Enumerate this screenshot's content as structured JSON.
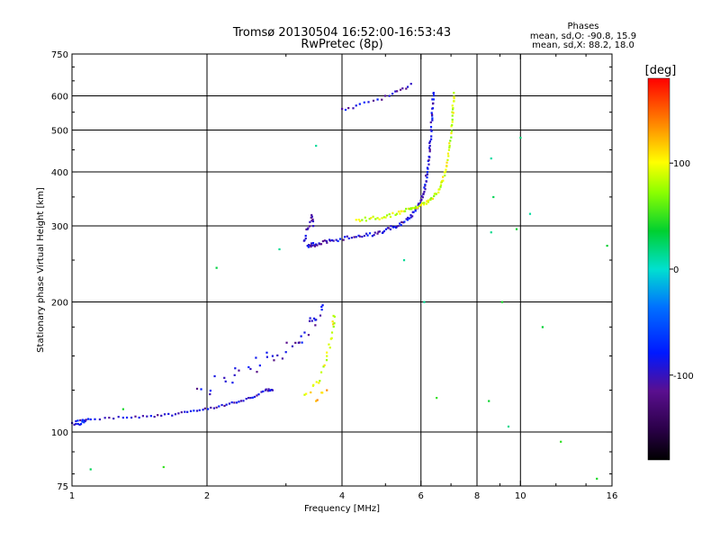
{
  "chart_data": {
    "type": "scatter",
    "title": "Tromsø 20130504 16:52:00-16:53:43",
    "subtitle": "RwPretec (8p)",
    "xlabel": "Frequency [MHz]",
    "ylabel": "Stationary phase Virtual Height [km]",
    "x_scale": "log",
    "y_scale": "log",
    "xlim": [
      1,
      16
    ],
    "ylim": [
      75,
      750
    ],
    "x_ticks": [
      {
        "value": 1,
        "label": "1"
      },
      {
        "value": 2,
        "label": "2"
      },
      {
        "value": 4,
        "label": "4"
      },
      {
        "value": 6,
        "label": "6"
      },
      {
        "value": 8,
        "label": "8"
      },
      {
        "value": 10,
        "label": "10"
      },
      {
        "value": 16,
        "label": "16"
      }
    ],
    "y_ticks": [
      {
        "value": 75,
        "label": "75"
      },
      {
        "value": 100,
        "label": "100"
      },
      {
        "value": 200,
        "label": "200"
      },
      {
        "value": 300,
        "label": "300"
      },
      {
        "value": 400,
        "label": "400"
      },
      {
        "value": 500,
        "label": "500"
      },
      {
        "value": 600,
        "label": "600"
      },
      {
        "value": 750,
        "label": "750"
      }
    ],
    "grid_x": [
      2,
      4,
      6,
      8,
      10
    ],
    "grid_y": [
      100,
      200,
      300,
      400,
      500,
      600
    ],
    "phase_stats": {
      "heading": "Phases",
      "o_line": "mean, sd,O: -90.8, 15.9",
      "x_line": "mean, sd,X:  88.2, 18.0"
    },
    "colorbar": {
      "unit_label": "[deg]",
      "range": [
        -180,
        180
      ],
      "ticks": [
        {
          "value": 100,
          "label": "100"
        },
        {
          "value": 0,
          "label": "0"
        },
        {
          "value": -100,
          "label": "-100"
        }
      ]
    },
    "traces": [
      {
        "name": "E-layer o-trace",
        "phase": -95,
        "density": 6,
        "spread": 0.012,
        "points": [
          [
            1.02,
            106
          ],
          [
            1.1,
            107
          ],
          [
            1.3,
            108
          ],
          [
            1.5,
            109
          ],
          [
            1.7,
            110
          ],
          [
            1.9,
            112
          ],
          [
            2.1,
            114
          ],
          [
            2.3,
            117
          ],
          [
            2.5,
            120
          ],
          [
            2.7,
            125
          ],
          [
            2.8,
            125
          ]
        ]
      },
      {
        "name": "E-layer low start",
        "phase": -85,
        "density": 3,
        "spread": 0.015,
        "points": [
          [
            1.0,
            105
          ],
          [
            1.04,
            104
          ],
          [
            1.07,
            106
          ]
        ]
      },
      {
        "name": "F1 o-trace",
        "phase": -100,
        "density": 5,
        "spread": 0.09,
        "points": [
          [
            1.9,
            126
          ],
          [
            2.2,
            131
          ],
          [
            2.5,
            140
          ],
          [
            2.8,
            150
          ],
          [
            3.1,
            158
          ],
          [
            3.3,
            170
          ],
          [
            3.5,
            182
          ],
          [
            3.6,
            195
          ]
        ]
      },
      {
        "name": "F2 low o-trace",
        "phase": -95,
        "density": 10,
        "spread": 0.02,
        "points": [
          [
            3.35,
            270
          ],
          [
            3.5,
            272
          ],
          [
            3.8,
            278
          ],
          [
            4.3,
            283
          ],
          [
            4.8,
            288
          ],
          [
            5.2,
            298
          ],
          [
            5.6,
            310
          ],
          [
            5.9,
            330
          ],
          [
            6.1,
            360
          ],
          [
            6.2,
            400
          ],
          [
            6.28,
            460
          ],
          [
            6.35,
            540
          ],
          [
            6.4,
            610
          ]
        ]
      },
      {
        "name": "F2 cusp o-trace",
        "phase": -100,
        "density": 4,
        "spread": 0.03,
        "points": [
          [
            3.3,
            278
          ],
          [
            3.35,
            295
          ],
          [
            3.42,
            318
          ],
          [
            3.45,
            300
          ]
        ]
      },
      {
        "name": "F2 high o-trace",
        "phase": -95,
        "density": 3,
        "spread": 0.02,
        "points": [
          [
            4.0,
            560
          ],
          [
            4.3,
            570
          ],
          [
            4.7,
            585
          ],
          [
            5.1,
            600
          ],
          [
            5.4,
            620
          ],
          [
            5.7,
            640
          ]
        ]
      },
      {
        "name": "F2 x-trace",
        "phase": 90,
        "density": 9,
        "spread": 0.02,
        "points": [
          [
            4.3,
            310
          ],
          [
            4.8,
            313
          ],
          [
            5.3,
            320
          ],
          [
            5.7,
            330
          ],
          [
            6.0,
            335
          ],
          [
            6.3,
            345
          ],
          [
            6.6,
            365
          ],
          [
            6.8,
            400
          ],
          [
            6.95,
            460
          ],
          [
            7.05,
            540
          ],
          [
            7.1,
            610
          ]
        ]
      },
      {
        "name": "F1 x-trace",
        "phase": 95,
        "density": 5,
        "spread": 0.04,
        "points": [
          [
            3.3,
            122
          ],
          [
            3.55,
            130
          ],
          [
            3.7,
            150
          ],
          [
            3.8,
            170
          ],
          [
            3.85,
            185
          ]
        ]
      },
      {
        "name": "F1 x extra",
        "phase": 120,
        "density": 3,
        "spread": 0.05,
        "points": [
          [
            3.5,
            118
          ],
          [
            3.7,
            125
          ]
        ]
      },
      {
        "name": "scattered",
        "phase": 30,
        "density": 1,
        "spread": 0.15,
        "points": [
          [
            1.6,
            83
          ],
          [
            1.3,
            113
          ],
          [
            2.1,
            240
          ],
          [
            2.9,
            265
          ],
          [
            3.5,
            460
          ],
          [
            5.5,
            250
          ],
          [
            6.1,
            200
          ],
          [
            8.6,
            290
          ],
          [
            8.7,
            350
          ],
          [
            9.1,
            200
          ],
          [
            9.4,
            103
          ],
          [
            9.8,
            295
          ],
          [
            10.5,
            320
          ],
          [
            11.2,
            175
          ],
          [
            12.3,
            95
          ],
          [
            14.8,
            78
          ],
          [
            15.6,
            270
          ],
          [
            8.6,
            430
          ],
          [
            10.0,
            480
          ],
          [
            1.1,
            82
          ],
          [
            6.5,
            120
          ],
          [
            8.5,
            118
          ]
        ]
      }
    ]
  }
}
